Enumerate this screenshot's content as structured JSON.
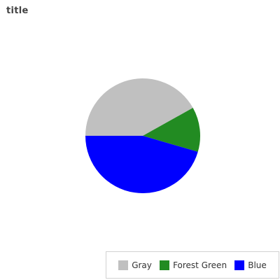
{
  "chart_data": {
    "type": "pie",
    "title": "title",
    "slices": [
      {
        "name": "Gray",
        "value": 41.9,
        "color": "#c0c0c0"
      },
      {
        "name": "Forest Green",
        "value": 12.6,
        "color": "#228b22"
      },
      {
        "name": "Blue",
        "value": 45.5,
        "color": "#0000ff"
      }
    ],
    "legend_position": "bottom-right"
  }
}
